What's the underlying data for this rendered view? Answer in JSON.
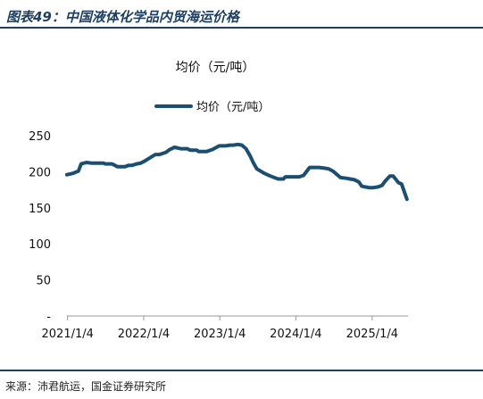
{
  "figure_label": "图表49：中国液体化学品内贸海运价格",
  "source": "来源：沛君航运，国金证券研究所",
  "colors": {
    "line": "#1b4f72",
    "heading": "#1d3f63"
  },
  "chart_data": {
    "type": "line",
    "title": "均价（元/吨）",
    "xlabel": "",
    "ylabel": "",
    "ylim": [
      0,
      260
    ],
    "yticks": [
      "-",
      "50",
      "100",
      "150",
      "200",
      "250"
    ],
    "ytick_values": [
      0,
      50,
      100,
      150,
      200,
      250
    ],
    "xticks": [
      "2021/1/4",
      "2022/1/4",
      "2023/1/4",
      "2024/1/4",
      "2025/1/4"
    ],
    "xtick_dates": [
      "2021-01-04",
      "2022-01-04",
      "2023-01-04",
      "2024-01-04",
      "2025-01-04"
    ],
    "xlim": [
      "2021-01-01",
      "2025-06-25"
    ],
    "legend_position": "top-center",
    "grid": false,
    "series": [
      {
        "name": "均价（元/吨）",
        "x": [
          "2021-01-01",
          "2021-02-01",
          "2021-02-15",
          "2021-02-25",
          "2021-03-10",
          "2021-04-05",
          "2021-05-01",
          "2021-06-01",
          "2021-06-25",
          "2021-07-05",
          "2021-08-05",
          "2021-09-01",
          "2021-09-20",
          "2021-10-05",
          "2021-10-25",
          "2021-11-10",
          "2021-12-01",
          "2021-12-20",
          "2022-01-10",
          "2022-02-01",
          "2022-03-01",
          "2022-03-20",
          "2022-04-01",
          "2022-04-20",
          "2022-05-10",
          "2022-06-01",
          "2022-07-01",
          "2022-08-01",
          "2022-08-15",
          "2022-09-15",
          "2022-09-25",
          "2022-11-01",
          "2022-12-01",
          "2023-01-01",
          "2023-01-20",
          "2023-02-01",
          "2023-02-20",
          "2023-03-10",
          "2023-04-01",
          "2023-04-20",
          "2023-05-10",
          "2023-05-30",
          "2023-06-15",
          "2023-07-01",
          "2023-08-05",
          "2023-08-20",
          "2023-09-05",
          "2023-10-01",
          "2023-10-12",
          "2023-11-05",
          "2023-11-15",
          "2023-12-10",
          "2023-12-20",
          "2024-01-01",
          "2024-01-20",
          "2024-02-10",
          "2024-03-10",
          "2024-04-01",
          "2024-04-25",
          "2024-05-20",
          "2024-06-10",
          "2024-06-30",
          "2024-07-20",
          "2024-08-05",
          "2024-09-01",
          "2024-09-20",
          "2024-10-10",
          "2024-11-01",
          "2024-11-15",
          "2024-12-01",
          "2024-12-20",
          "2025-01-10",
          "2025-02-01",
          "2025-02-20",
          "2025-03-10",
          "2025-03-30",
          "2025-04-15",
          "2025-05-10",
          "2025-05-25",
          "2025-06-20"
        ],
        "values": [
          196,
          198,
          200,
          201,
          211,
          213,
          212,
          212,
          212,
          211,
          211,
          207,
          207,
          207,
          209,
          209,
          211,
          212,
          215,
          219,
          224,
          224,
          225,
          227,
          231,
          234,
          232,
          232,
          230,
          230,
          228,
          228,
          231,
          236,
          236,
          236,
          237,
          237,
          238,
          237,
          232,
          222,
          212,
          204,
          198,
          196,
          194,
          191,
          190,
          190,
          193,
          193,
          193,
          193,
          193,
          195,
          206,
          206,
          206,
          205,
          204,
          201,
          196,
          192,
          191,
          190,
          189,
          186,
          180,
          179,
          178,
          178,
          179,
          181,
          188,
          194,
          194,
          185,
          183,
          162
        ]
      }
    ]
  }
}
